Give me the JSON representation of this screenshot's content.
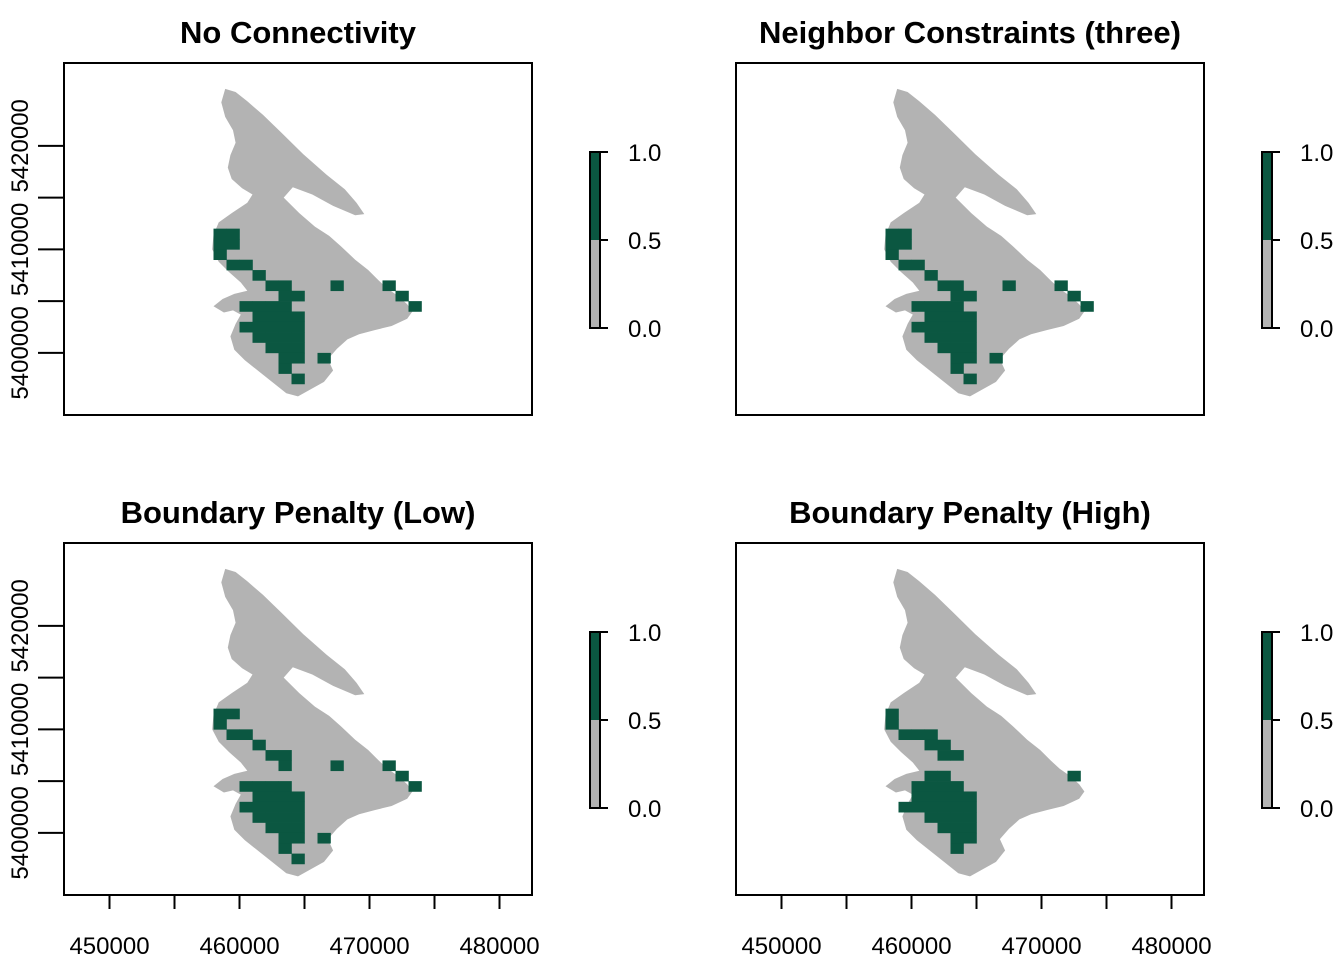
{
  "chart_data": [
    {
      "type": "heatmap",
      "title": "No Connectivity",
      "xlim": [
        446500,
        482500
      ],
      "ylim": [
        5394000,
        5428000
      ],
      "show_x_axis": false,
      "show_y_axis": true,
      "selected_cells": [
        [
          458,
          5411
        ],
        [
          459,
          5411
        ],
        [
          458,
          5410
        ],
        [
          459,
          5410
        ],
        [
          458,
          5409
        ],
        [
          459,
          5408
        ],
        [
          460,
          5408
        ],
        [
          461,
          5407
        ],
        [
          462,
          5406
        ],
        [
          463,
          5406
        ],
        [
          463,
          5405
        ],
        [
          464,
          5405
        ],
        [
          467,
          5406
        ],
        [
          471,
          5406
        ],
        [
          472,
          5405
        ],
        [
          473,
          5404
        ],
        [
          460,
          5404
        ],
        [
          461,
          5404
        ],
        [
          462,
          5404
        ],
        [
          463,
          5404
        ],
        [
          461,
          5403
        ],
        [
          462,
          5403
        ],
        [
          463,
          5403
        ],
        [
          464,
          5403
        ],
        [
          460,
          5402
        ],
        [
          461,
          5402
        ],
        [
          462,
          5402
        ],
        [
          463,
          5402
        ],
        [
          464,
          5402
        ],
        [
          461,
          5401
        ],
        [
          462,
          5401
        ],
        [
          463,
          5401
        ],
        [
          464,
          5401
        ],
        [
          462,
          5400
        ],
        [
          463,
          5400
        ],
        [
          464,
          5400
        ],
        [
          463,
          5399
        ],
        [
          464,
          5399
        ],
        [
          463,
          5398
        ],
        [
          466,
          5399
        ],
        [
          464,
          5397
        ]
      ]
    },
    {
      "type": "heatmap",
      "title": "Neighbor Constraints (three)",
      "xlim": [
        446500,
        482500
      ],
      "ylim": [
        5394000,
        5428000
      ],
      "show_x_axis": false,
      "show_y_axis": false,
      "selected_cells": [
        [
          458,
          5411
        ],
        [
          459,
          5411
        ],
        [
          458,
          5410
        ],
        [
          459,
          5410
        ],
        [
          458,
          5409
        ],
        [
          459,
          5408
        ],
        [
          460,
          5408
        ],
        [
          461,
          5407
        ],
        [
          462,
          5406
        ],
        [
          463,
          5406
        ],
        [
          463,
          5405
        ],
        [
          464,
          5405
        ],
        [
          467,
          5406
        ],
        [
          471,
          5406
        ],
        [
          472,
          5405
        ],
        [
          473,
          5404
        ],
        [
          460,
          5404
        ],
        [
          461,
          5404
        ],
        [
          462,
          5404
        ],
        [
          463,
          5404
        ],
        [
          461,
          5403
        ],
        [
          462,
          5403
        ],
        [
          463,
          5403
        ],
        [
          464,
          5403
        ],
        [
          460,
          5402
        ],
        [
          461,
          5402
        ],
        [
          462,
          5402
        ],
        [
          463,
          5402
        ],
        [
          464,
          5402
        ],
        [
          461,
          5401
        ],
        [
          462,
          5401
        ],
        [
          463,
          5401
        ],
        [
          464,
          5401
        ],
        [
          462,
          5400
        ],
        [
          463,
          5400
        ],
        [
          464,
          5400
        ],
        [
          463,
          5399
        ],
        [
          464,
          5399
        ],
        [
          463,
          5398
        ],
        [
          466,
          5399
        ],
        [
          464,
          5397
        ]
      ]
    },
    {
      "type": "heatmap",
      "title": "Boundary Penalty (Low)",
      "xlim": [
        446500,
        482500
      ],
      "ylim": [
        5394000,
        5428000
      ],
      "show_x_axis": true,
      "show_y_axis": true,
      "selected_cells": [
        [
          458,
          5411
        ],
        [
          459,
          5411
        ],
        [
          458,
          5410
        ],
        [
          459,
          5409
        ],
        [
          460,
          5409
        ],
        [
          461,
          5408
        ],
        [
          462,
          5407
        ],
        [
          463,
          5407
        ],
        [
          463,
          5406
        ],
        [
          467,
          5406
        ],
        [
          471,
          5406
        ],
        [
          472,
          5405
        ],
        [
          473,
          5404
        ],
        [
          460,
          5404
        ],
        [
          461,
          5404
        ],
        [
          462,
          5404
        ],
        [
          463,
          5404
        ],
        [
          461,
          5403
        ],
        [
          462,
          5403
        ],
        [
          463,
          5403
        ],
        [
          464,
          5403
        ],
        [
          460,
          5402
        ],
        [
          461,
          5402
        ],
        [
          462,
          5402
        ],
        [
          463,
          5402
        ],
        [
          464,
          5402
        ],
        [
          461,
          5401
        ],
        [
          462,
          5401
        ],
        [
          463,
          5401
        ],
        [
          464,
          5401
        ],
        [
          462,
          5400
        ],
        [
          463,
          5400
        ],
        [
          464,
          5400
        ],
        [
          463,
          5399
        ],
        [
          464,
          5399
        ],
        [
          463,
          5398
        ],
        [
          466,
          5399
        ],
        [
          464,
          5397
        ]
      ]
    },
    {
      "type": "heatmap",
      "title": "Boundary Penalty (High)",
      "xlim": [
        446500,
        482500
      ],
      "ylim": [
        5394000,
        5428000
      ],
      "show_x_axis": true,
      "show_y_axis": false,
      "selected_cells": [
        [
          458,
          5411
        ],
        [
          458,
          5410
        ],
        [
          459,
          5409
        ],
        [
          460,
          5409
        ],
        [
          461,
          5409
        ],
        [
          461,
          5408
        ],
        [
          462,
          5408
        ],
        [
          462,
          5407
        ],
        [
          463,
          5407
        ],
        [
          472,
          5405
        ],
        [
          461,
          5405
        ],
        [
          462,
          5405
        ],
        [
          460,
          5404
        ],
        [
          461,
          5404
        ],
        [
          462,
          5404
        ],
        [
          463,
          5404
        ],
        [
          460,
          5403
        ],
        [
          461,
          5403
        ],
        [
          462,
          5403
        ],
        [
          463,
          5403
        ],
        [
          464,
          5403
        ],
        [
          459,
          5402
        ],
        [
          460,
          5402
        ],
        [
          461,
          5402
        ],
        [
          462,
          5402
        ],
        [
          463,
          5402
        ],
        [
          464,
          5402
        ],
        [
          461,
          5401
        ],
        [
          462,
          5401
        ],
        [
          463,
          5401
        ],
        [
          464,
          5401
        ],
        [
          462,
          5400
        ],
        [
          463,
          5400
        ],
        [
          464,
          5400
        ],
        [
          463,
          5399
        ],
        [
          464,
          5399
        ],
        [
          463,
          5398
        ]
      ]
    }
  ],
  "axes": {
    "x_ticks": [
      450000,
      455000,
      460000,
      465000,
      470000,
      475000,
      480000
    ],
    "x_tick_labels": [
      "450000",
      "",
      "460000",
      "",
      "470000",
      "",
      "480000"
    ],
    "y_ticks": [
      5400000,
      5405000,
      5410000,
      5415000,
      5420000
    ],
    "y_tick_labels": [
      "5400000",
      "",
      "5410000",
      "",
      "5420000"
    ]
  },
  "legend": {
    "breaks": [
      0.0,
      0.5,
      1.0
    ],
    "labels": [
      "0.0",
      "0.5",
      "1.0"
    ],
    "colors": [
      "#b3b3b3",
      "#0b5741"
    ]
  },
  "colors": {
    "background_cell": "#b3b3b3",
    "selected_cell": "#0b5741",
    "frame": "#000000"
  }
}
